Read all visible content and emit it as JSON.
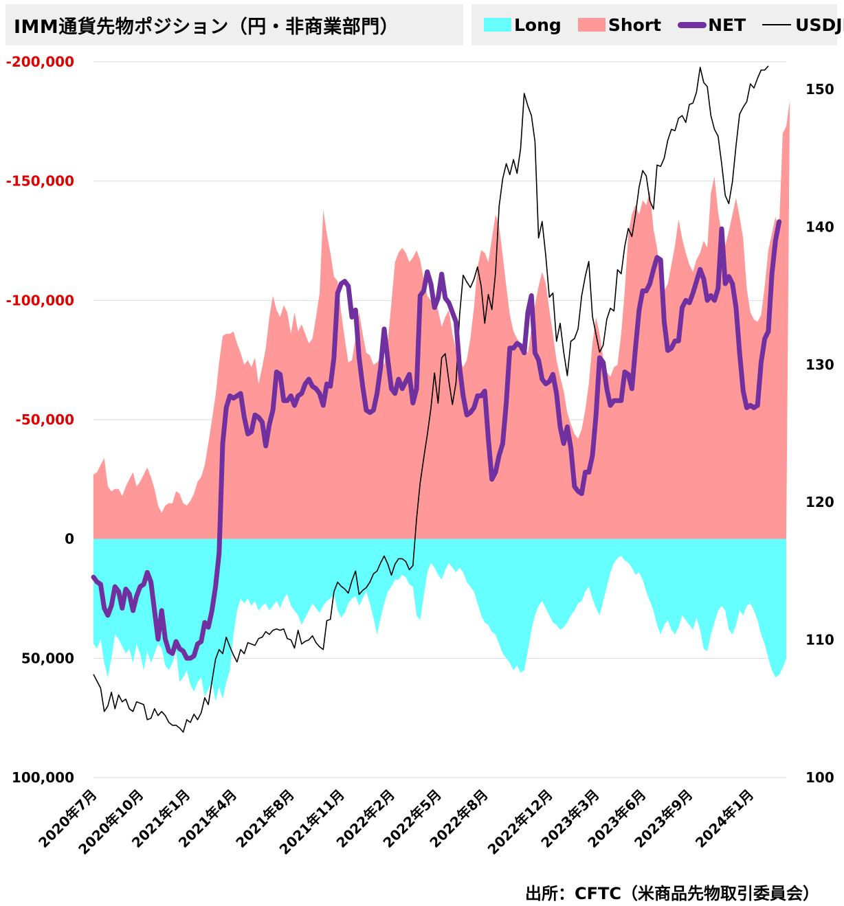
{
  "title": "IMM通貨先物ポジション（円・非商業部門）",
  "legend": [
    {
      "label": "Long",
      "kind": "fill",
      "color": "#66ffff"
    },
    {
      "label": "Short",
      "kind": "fill",
      "color": "#ff9999"
    },
    {
      "label": "NET",
      "kind": "thick-line",
      "color": "#7030a0"
    },
    {
      "label": "USDJPY",
      "kind": "thin-line",
      "color": "#000000"
    }
  ],
  "source": "出所：CFTC（米商品先物取引委員会）",
  "chart_data": {
    "type": "area",
    "left_axis": {
      "reversed": true,
      "ylim": [
        100000,
        -200000
      ],
      "ticks": [
        {
          "value": -200000,
          "label": "-200,000",
          "color": "#e00000"
        },
        {
          "value": -150000,
          "label": "-150,000",
          "color": "#e00000"
        },
        {
          "value": -100000,
          "label": "-100,000",
          "color": "#e00000"
        },
        {
          "value": -50000,
          "label": "-50,000",
          "color": "#e00000"
        },
        {
          "value": 0,
          "label": "0",
          "color": "#000000"
        },
        {
          "value": 50000,
          "label": "50,000",
          "color": "#000000"
        },
        {
          "value": 100000,
          "label": "100,000",
          "color": "#000000"
        }
      ]
    },
    "right_axis": {
      "ylim": [
        100,
        152
      ],
      "ticks": [
        100,
        110,
        120,
        130,
        140,
        150
      ]
    },
    "x_ticks": [
      {
        "i": 0,
        "label": "2020年7月"
      },
      {
        "i": 13,
        "label": "2020年10月"
      },
      {
        "i": 26,
        "label": "2021年1月"
      },
      {
        "i": 39,
        "label": "2021年4月"
      },
      {
        "i": 55,
        "label": "2021年8月"
      },
      {
        "i": 69,
        "label": "2021年11月"
      },
      {
        "i": 83,
        "label": "2022年2月"
      },
      {
        "i": 96,
        "label": "2022年5月"
      },
      {
        "i": 109,
        "label": "2022年8月"
      },
      {
        "i": 127,
        "label": "2022年12月"
      },
      {
        "i": 140,
        "label": "2023年3月"
      },
      {
        "i": 153,
        "label": "2023年6月"
      },
      {
        "i": 166,
        "label": "2023年9月"
      },
      {
        "i": 183,
        "label": "2024年1月"
      }
    ],
    "series": [
      {
        "name": "Long",
        "color": "#66ffff",
        "values": [
          44000,
          46000,
          42000,
          52000,
          58000,
          50000,
          40000,
          42000,
          45000,
          48000,
          46000,
          52000,
          44000,
          48000,
          55000,
          47000,
          52000,
          48000,
          44000,
          46000,
          53000,
          55000,
          52000,
          47000,
          60000,
          58000,
          55000,
          61000,
          64000,
          60000,
          58000,
          66000,
          63000,
          60000,
          68000,
          62000,
          67000,
          60000,
          55000,
          40000,
          30000,
          25000,
          27000,
          25000,
          28000,
          26000,
          30000,
          28000,
          27000,
          30000,
          28000,
          26000,
          29000,
          25000,
          23000,
          28000,
          30000,
          32000,
          36000,
          33000,
          30000,
          27000,
          29000,
          31000,
          28000,
          26000,
          25000,
          23000,
          30000,
          33000,
          31000,
          27000,
          25000,
          24000,
          28000,
          25000,
          22000,
          27000,
          33000,
          40000,
          33000,
          27000,
          22000,
          20000,
          17000,
          17000,
          15000,
          16000,
          19000,
          20000,
          32000,
          34000,
          24000,
          14000,
          10000,
          12000,
          15000,
          17000,
          13000,
          10000,
          12000,
          14000,
          12000,
          14000,
          18000,
          20000,
          22000,
          27000,
          32000,
          35000,
          36000,
          39000,
          40000,
          44000,
          48000,
          50000,
          52000,
          55000,
          53000,
          56000,
          55000,
          47000,
          38000,
          32000,
          28000,
          26000,
          29000,
          32000,
          35000,
          36000,
          38000,
          37000,
          35000,
          32000,
          30000,
          27000,
          26000,
          22000,
          20000,
          25000,
          29000,
          32000,
          26000,
          20000,
          14000,
          10000,
          8000,
          7000,
          9000,
          10000,
          12000,
          15000,
          14000,
          17000,
          22000,
          26000,
          30000,
          36000,
          40000,
          36000,
          34000,
          38000,
          40000,
          37000,
          32000,
          34000,
          36000,
          38000,
          33000,
          38000,
          46000,
          47000,
          40000,
          35000,
          30000,
          28000,
          30000,
          38000,
          40000,
          36000,
          30000,
          32000,
          28000,
          27000,
          30000,
          34000,
          40000,
          44000,
          50000,
          55000,
          58000,
          57000,
          54000,
          50000
        ]
      },
      {
        "name": "Short",
        "color": "#ff9999",
        "values": [
          -27000,
          -28000,
          -31000,
          -34000,
          -22000,
          -20000,
          -21000,
          -21000,
          -18000,
          -22000,
          -25000,
          -28000,
          -22000,
          -24000,
          -27000,
          -30000,
          -26000,
          -21000,
          -14000,
          -11000,
          -14000,
          -15000,
          -15000,
          -20000,
          -19000,
          -15000,
          -14000,
          -16000,
          -19000,
          -24000,
          -26000,
          -31000,
          -40000,
          -50000,
          -60000,
          -74000,
          -85000,
          -86000,
          -86000,
          -87000,
          -82000,
          -78000,
          -73000,
          -75000,
          -72000,
          -76000,
          -65000,
          -72000,
          -80000,
          -93000,
          -102000,
          -96000,
          -93000,
          -98000,
          -95000,
          -86000,
          -95000,
          -87000,
          -90000,
          -86000,
          -82000,
          -84000,
          -93000,
          -103000,
          -138000,
          -128000,
          -120000,
          -110000,
          -108000,
          -95000,
          -84000,
          -74000,
          -75000,
          -84000,
          -95000,
          -86000,
          -78000,
          -77000,
          -73000,
          -74000,
          -76000,
          -73000,
          -83000,
          -99000,
          -116000,
          -120000,
          -122000,
          -120000,
          -116000,
          -118000,
          -121000,
          -117000,
          -109000,
          -102000,
          -100000,
          -102000,
          -96000,
          -89000,
          -93000,
          -96000,
          -86000,
          -79000,
          -76000,
          -72000,
          -75000,
          -84000,
          -97000,
          -114000,
          -121000,
          -120000,
          -116000,
          -126000,
          -136000,
          -131000,
          -119000,
          -106000,
          -94000,
          -87000,
          -84000,
          -82000,
          -80000,
          -78000,
          -88000,
          -98000,
          -106000,
          -112000,
          -107000,
          -96000,
          -86000,
          -75000,
          -68000,
          -62000,
          -53000,
          -48000,
          -44000,
          -42000,
          -46000,
          -54000,
          -65000,
          -82000,
          -93000,
          -86000,
          -76000,
          -70000,
          -68000,
          -72000,
          -73000,
          -86000,
          -104000,
          -128000,
          -136000,
          -140000,
          -136000,
          -142000,
          -140000,
          -146000,
          -130000,
          -122000,
          -110000,
          -104000,
          -107000,
          -115000,
          -123000,
          -134000,
          -126000,
          -120000,
          -115000,
          -112000,
          -117000,
          -120000,
          -125000,
          -122000,
          -145000,
          -152000,
          -137000,
          -128000,
          -123000,
          -129000,
          -136000,
          -143000,
          -135000,
          -126000,
          -105000,
          -95000,
          -92000,
          -91000,
          -94000,
          -106000,
          -121000,
          -128000,
          -135000,
          -130000,
          -170000,
          -173000,
          -184000
        ]
      },
      {
        "name": "NET",
        "color": "#7030a0",
        "values": [
          16000,
          18000,
          19000,
          29000,
          32000,
          28000,
          20000,
          22000,
          29000,
          21000,
          23000,
          30000,
          24000,
          20000,
          19000,
          14000,
          18000,
          30000,
          42000,
          30000,
          42000,
          47000,
          48000,
          43000,
          46000,
          47000,
          50000,
          50000,
          49000,
          44000,
          43000,
          35000,
          37000,
          30000,
          20000,
          6000,
          -40000,
          -55000,
          -60000,
          -59000,
          -60000,
          -61000,
          -51000,
          -44000,
          -45000,
          -52000,
          -51000,
          -49000,
          -39000,
          -48000,
          -54000,
          -70000,
          -69000,
          -58000,
          -58000,
          -60000,
          -56000,
          -60000,
          -61000,
          -65000,
          -67000,
          -64000,
          -63000,
          -61000,
          -56000,
          -65000,
          -64000,
          -76000,
          -103000,
          -107000,
          -108000,
          -106000,
          -93000,
          -96000,
          -76000,
          -64000,
          -54000,
          -53000,
          -54000,
          -61000,
          -72000,
          -88000,
          -75000,
          -63000,
          -61000,
          -67000,
          -63000,
          -66000,
          -69000,
          -57000,
          -63000,
          -102000,
          -104000,
          -112000,
          -107000,
          -97000,
          -101000,
          -111000,
          -101000,
          -99000,
          -95000,
          -91000,
          -72000,
          -60000,
          -52000,
          -53000,
          -55000,
          -60000,
          -60000,
          -62000,
          -42000,
          -25000,
          -28000,
          -35000,
          -40000,
          -57000,
          -80000,
          -80000,
          -82000,
          -81000,
          -78000,
          -95000,
          -102000,
          -78000,
          -75000,
          -67000,
          -65000,
          -66000,
          -69000,
          -61000,
          -47000,
          -40000,
          -47000,
          -38000,
          -22000,
          -20000,
          -19000,
          -28000,
          -28000,
          -35000,
          -52000,
          -76000,
          -74000,
          -63000,
          -56000,
          -58000,
          -58000,
          -58000,
          -70000,
          -69000,
          -63000,
          -80000,
          -96000,
          -104000,
          -104000,
          -107000,
          -113000,
          -118000,
          -117000,
          -91000,
          -79000,
          -80000,
          -83000,
          -83000,
          -97000,
          -100000,
          -99000,
          -103000,
          -108000,
          -113000,
          -109000,
          -100000,
          -102000,
          -100000,
          -105000,
          -130000,
          -107000,
          -110000,
          -107000,
          -97000,
          -78000,
          -62000,
          -55000,
          -56000,
          -55000,
          -56000,
          -74000,
          -84000,
          -87000,
          -111000,
          -125000,
          -133000
        ]
      },
      {
        "name": "USDJPY",
        "color": "#000000",
        "values": [
          107.5,
          107.0,
          106.5,
          104.8,
          105.2,
          106.2,
          105.0,
          106.0,
          105.5,
          105.7,
          105.0,
          104.8,
          105.5,
          105.4,
          105.3,
          104.2,
          104.3,
          105.0,
          104.5,
          104.8,
          104.5,
          104.0,
          103.8,
          103.8,
          103.6,
          103.3,
          104.2,
          104.0,
          104.6,
          104.2,
          104.7,
          105.8,
          105.3,
          107.0,
          108.6,
          109.3,
          109.0,
          110.2,
          109.5,
          108.9,
          108.4,
          109.3,
          109.0,
          109.8,
          109.7,
          109.6,
          110.1,
          110.2,
          110.6,
          110.4,
          110.7,
          110.8,
          110.7,
          110.8,
          110.1,
          110.0,
          109.4,
          110.7,
          109.7,
          109.9,
          110.0,
          110.3,
          109.8,
          109.5,
          109.3,
          111.4,
          111.5,
          113.5,
          114.2,
          113.9,
          113.7,
          113.4,
          114.3,
          115.0,
          113.3,
          113.6,
          113.8,
          114.2,
          114.8,
          115.0,
          115.6,
          116.1,
          115.5,
          114.7,
          115.5,
          115.9,
          115.9,
          115.7,
          115.1,
          115.4,
          118.8,
          121.4,
          123.2,
          124.9,
          126.8,
          129.4,
          127.2,
          130.5,
          130.8,
          128.8,
          127.1,
          128.7,
          133.6,
          136.5,
          136.0,
          135.6,
          136.2,
          137.1,
          135.7,
          133.0,
          135.1,
          134.0,
          136.7,
          141.5,
          143.5,
          144.6,
          143.8,
          144.9,
          143.9,
          145.7,
          149.7,
          148.8,
          148.1,
          146.2,
          139.2,
          140.4,
          137.9,
          134.9,
          135.2,
          131.7,
          133.0,
          130.9,
          129.2,
          131.7,
          131.9,
          132.6,
          135.0,
          136.4,
          137.5,
          133.5,
          132.2,
          130.9,
          131.4,
          133.3,
          134.1,
          133.9,
          136.9,
          136.6,
          138.6,
          139.9,
          139.3,
          140.9,
          142.9,
          144.1,
          143.7,
          141.9,
          141.3,
          144.5,
          144.4,
          145.0,
          146.3,
          147.1,
          147.0,
          147.9,
          148.1,
          147.6,
          148.9,
          149.0,
          149.8,
          151.6,
          150.5,
          150.2,
          148.1,
          147.1,
          146.6,
          144.6,
          142.3,
          141.7,
          143.3,
          145.9,
          148.2,
          148.7,
          149.1,
          150.4,
          150.1,
          150.8,
          151.4,
          151.4,
          151.7
        ]
      }
    ]
  }
}
